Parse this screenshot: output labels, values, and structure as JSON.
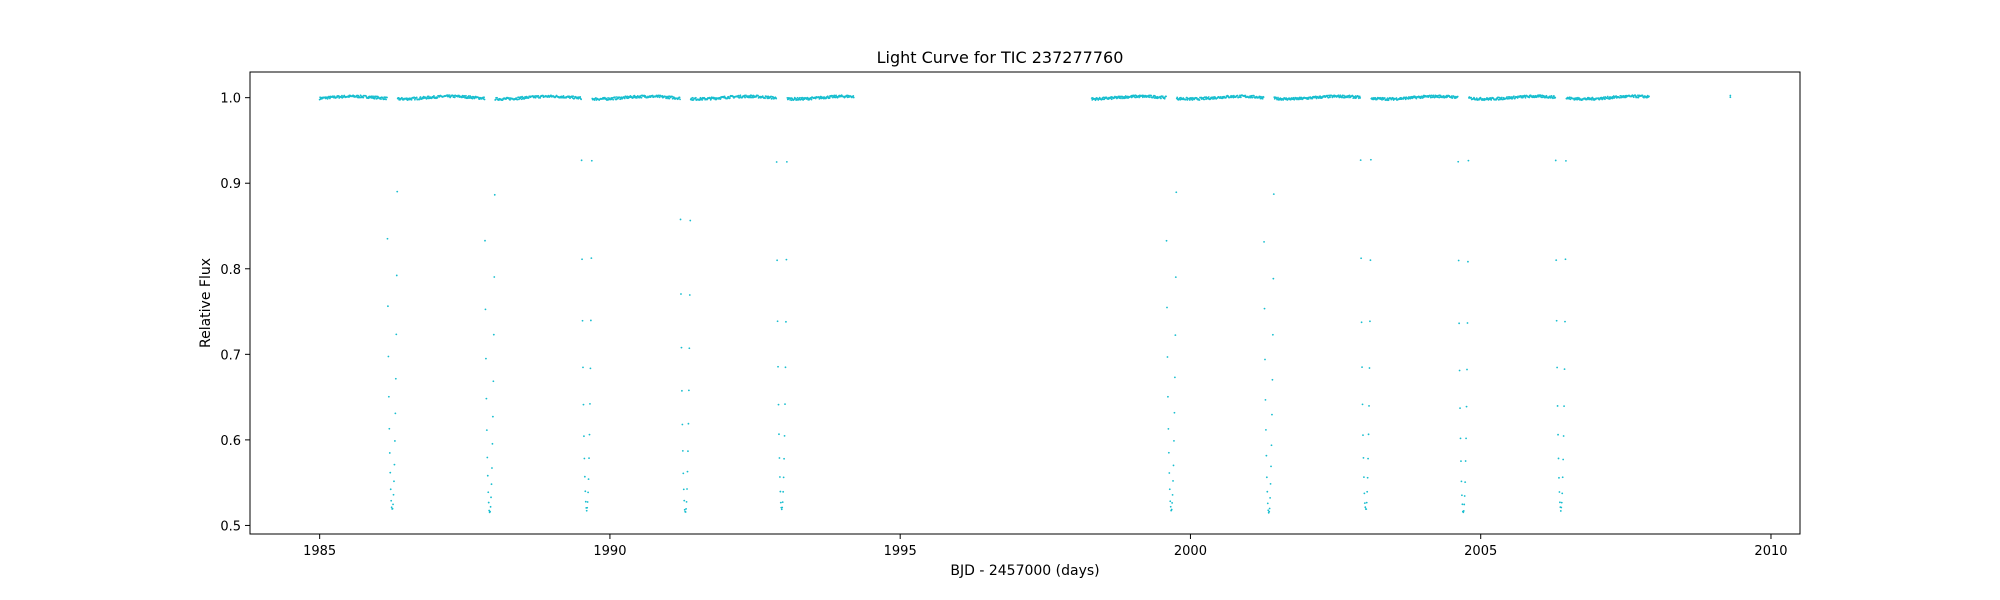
{
  "chart_data": {
    "type": "scatter",
    "title": "Light Curve for TIC 237277760",
    "xlabel": "BJD - 2457000 (days)",
    "ylabel": "Relative Flux",
    "xlim": [
      1983.8,
      2010.5
    ],
    "ylim": [
      0.49,
      1.03
    ],
    "xticks": [
      1985,
      1990,
      1995,
      2000,
      2005,
      2010
    ],
    "yticks": [
      0.5,
      0.6,
      0.7,
      0.8,
      0.9,
      1.0
    ],
    "ytick_labels": [
      "0.5",
      "0.6",
      "0.7",
      "0.8",
      "0.9",
      "1.0"
    ],
    "grid": false,
    "legend": "none",
    "marker_color": "#17becf",
    "series": [
      {
        "segments": [
          {
            "x_start": 1985.0,
            "x_end": 1994.2
          },
          {
            "x_start": 1998.3,
            "x_end": 2007.9
          },
          {
            "x_start": 2009.3,
            "x_end": 2009.3
          }
        ],
        "baseline": 1.0,
        "eclipses": [
          {
            "x": 1986.25,
            "min": 0.518
          },
          {
            "x": 1987.93,
            "min": 0.514
          },
          {
            "x": 1989.6,
            "min": 0.518
          },
          {
            "x": 1991.3,
            "min": 0.514
          },
          {
            "x": 1992.96,
            "min": 0.518
          },
          {
            "x": 1999.67,
            "min": 0.518
          },
          {
            "x": 2001.35,
            "min": 0.514
          },
          {
            "x": 2003.02,
            "min": 0.518
          },
          {
            "x": 2004.7,
            "min": 0.514
          },
          {
            "x": 2006.38,
            "min": 0.518
          }
        ]
      }
    ]
  }
}
